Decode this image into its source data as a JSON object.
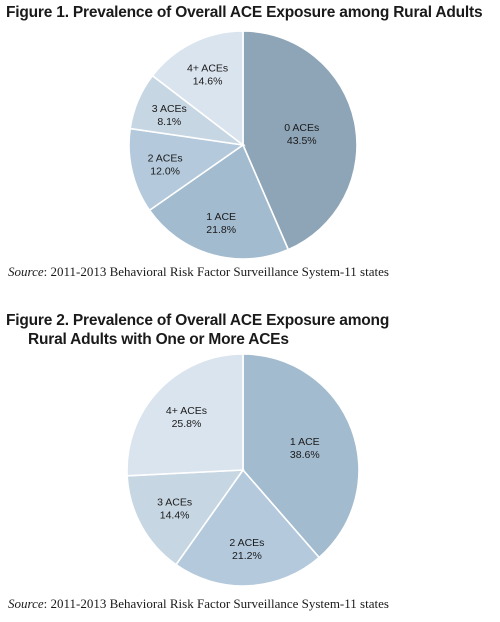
{
  "colors": {
    "0 ACEs": "#8ea5b8",
    "1 ACE": "#a3bbcf",
    "2 ACEs": "#b4cadc",
    "3 ACEs": "#c7d6e3",
    "4+ ACEs": "#dae4ee"
  },
  "chart_data": [
    {
      "type": "pie",
      "title": "Figure 1. Prevalence of Overall ACE Exposure among Rural Adults",
      "source_label": "Source",
      "source_text": ": 2011-2013 Behavioral Risk Factor Surveillance System-11 states",
      "slices": [
        {
          "label": "0 ACEs",
          "value": 43.5,
          "display": "43.5%"
        },
        {
          "label": "1 ACE",
          "value": 21.8,
          "display": "21.8%"
        },
        {
          "label": "2 ACEs",
          "value": 12.0,
          "display": "12.0%"
        },
        {
          "label": "3 ACEs",
          "value": 8.1,
          "display": "8.1%"
        },
        {
          "label": "4+ ACEs",
          "value": 14.6,
          "display": "14.6%"
        }
      ]
    },
    {
      "type": "pie",
      "title_line1": "Figure 2. Prevalence of Overall ACE Exposure among",
      "title_line2": "Rural Adults with One or More ACEs",
      "source_label": "Source",
      "source_text": ": 2011-2013 Behavioral Risk Factor Surveillance System-11 states",
      "slices": [
        {
          "label": "1 ACE",
          "value": 38.6,
          "display": "38.6%"
        },
        {
          "label": "2 ACEs",
          "value": 21.2,
          "display": "21.2%"
        },
        {
          "label": "3 ACEs",
          "value": 14.4,
          "display": "14.4%"
        },
        {
          "label": "4+ ACEs",
          "value": 25.8,
          "display": "25.8%"
        }
      ]
    }
  ]
}
